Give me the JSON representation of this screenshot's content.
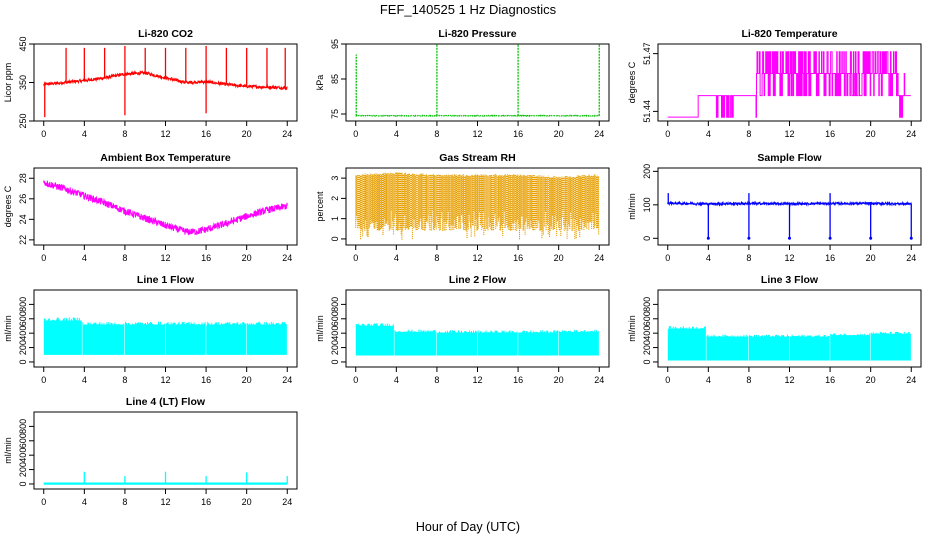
{
  "figure": {
    "title": "FEF_140525  1 Hz Diagnostics",
    "xlabel": "Hour of Day (UTC)"
  },
  "chart_data": [
    {
      "type": "line",
      "title": "Li-820 CO2",
      "ylabel": "Licor ppm",
      "color": "#ff0000",
      "xlim": [
        0,
        24
      ],
      "ylim": [
        250,
        450
      ],
      "xticks": [
        0,
        4,
        8,
        12,
        16,
        20,
        24
      ],
      "yticks": [
        250,
        350,
        450
      ],
      "x": [
        0,
        2,
        4,
        6,
        8,
        10,
        12,
        14,
        16,
        18,
        20,
        22,
        24
      ],
      "y": [
        345,
        350,
        355,
        362,
        372,
        375,
        362,
        350,
        352,
        345,
        340,
        338,
        336
      ],
      "spikes": [
        {
          "x": 0.1,
          "y": 260
        },
        {
          "x": 2.2,
          "y": 440
        },
        {
          "x": 4.0,
          "y": 440
        },
        {
          "x": 6.0,
          "y": 440
        },
        {
          "x": 8.0,
          "y": 265
        },
        {
          "x": 8.0,
          "y": 445
        },
        {
          "x": 10.0,
          "y": 440
        },
        {
          "x": 12.0,
          "y": 440
        },
        {
          "x": 14.0,
          "y": 440
        },
        {
          "x": 16.0,
          "y": 270
        },
        {
          "x": 16.0,
          "y": 445
        },
        {
          "x": 18.0,
          "y": 440
        },
        {
          "x": 20.0,
          "y": 440
        },
        {
          "x": 22.0,
          "y": 440
        },
        {
          "x": 23.8,
          "y": 440
        }
      ]
    },
    {
      "type": "line",
      "title": "Li-820 Pressure",
      "ylabel": "kPa",
      "color": "#00c000",
      "xlim": [
        0,
        24
      ],
      "ylim": [
        73,
        95
      ],
      "xticks": [
        0,
        4,
        8,
        12,
        16,
        20,
        24
      ],
      "yticks": [
        75,
        85,
        95
      ],
      "x": [
        0,
        24
      ],
      "y": [
        74.5,
        74.5
      ],
      "spikes": [
        {
          "x": 0.05,
          "y": 92
        },
        {
          "x": 8.0,
          "y": 95
        },
        {
          "x": 16.0,
          "y": 95
        },
        {
          "x": 24.0,
          "y": 95
        }
      ]
    },
    {
      "type": "line",
      "title": "Li-820 Temperature",
      "ylabel": "degrees C",
      "color": "#ff00ff",
      "xlim": [
        0,
        24
      ],
      "ylim": [
        51.435,
        51.475
      ],
      "xticks": [
        0,
        4,
        8,
        12,
        16,
        20,
        24
      ],
      "yticks": [
        51.44,
        51.47
      ],
      "levels": [
        51.437,
        51.4482,
        51.4597,
        51.471
      ],
      "x": [
        0,
        3.0,
        4.5,
        6.5,
        8.5,
        9.0,
        10.0,
        12.0,
        14.0,
        16.0,
        18.0,
        20.0,
        22.0,
        23.5,
        24.0
      ],
      "y": [
        51.437,
        51.437,
        51.4482,
        51.4482,
        51.4482,
        51.4597,
        51.4597,
        51.4597,
        51.4597,
        51.4597,
        51.4597,
        51.4597,
        51.4597,
        51.4482,
        51.4482
      ]
    },
    {
      "type": "line",
      "title": "Ambient Box Temperature",
      "ylabel": "degrees C",
      "color": "#ff00ff",
      "xlim": [
        0,
        24
      ],
      "ylim": [
        21.5,
        29
      ],
      "xticks": [
        0,
        4,
        8,
        12,
        16,
        20,
        24
      ],
      "yticks": [
        22,
        24,
        26,
        28
      ],
      "x": [
        0,
        2,
        4,
        6,
        8,
        10,
        12,
        14,
        15,
        16,
        18,
        20,
        22,
        24
      ],
      "y": [
        27.6,
        27.0,
        26.3,
        25.6,
        24.8,
        24.1,
        23.4,
        22.8,
        22.8,
        23.0,
        23.6,
        24.3,
        24.9,
        25.3
      ]
    },
    {
      "type": "line",
      "title": "Gas Stream RH",
      "ylabel": "percent",
      "color": "#e69f00",
      "xlim": [
        0,
        24
      ],
      "ylim": [
        -0.3,
        3.5
      ],
      "xticks": [
        0,
        4,
        8,
        12,
        16,
        20,
        24
      ],
      "yticks": [
        0,
        1,
        2,
        3
      ],
      "x": [
        0,
        4,
        8,
        12,
        16,
        20,
        24
      ],
      "y": [
        3.2,
        3.3,
        3.2,
        3.2,
        3.2,
        3.1,
        3.2
      ]
    },
    {
      "type": "line",
      "title": "Sample Flow",
      "ylabel": "ml/min",
      "color": "#0000ff",
      "xlim": [
        0,
        24
      ],
      "ylim": [
        -20,
        210
      ],
      "xticks": [
        0,
        4,
        8,
        12,
        16,
        20,
        24
      ],
      "yticks": [
        0,
        100,
        200
      ],
      "x": [
        0,
        4,
        8,
        12,
        16,
        20,
        24
      ],
      "y": [
        105,
        103,
        104,
        103,
        104,
        104,
        103
      ],
      "spikes": [
        {
          "x": 0.05,
          "y": 135
        },
        {
          "x": 4.0,
          "y": 0
        },
        {
          "x": 8.0,
          "y": 0
        },
        {
          "x": 8.0,
          "y": 135
        },
        {
          "x": 12.0,
          "y": 0
        },
        {
          "x": 16.0,
          "y": 0
        },
        {
          "x": 16.0,
          "y": 135
        },
        {
          "x": 20.0,
          "y": 0
        },
        {
          "x": 24.0,
          "y": 0
        }
      ]
    },
    {
      "type": "area",
      "title": "Line 1 Flow",
      "ylabel": "ml/min",
      "color": "#00ffff",
      "xlim": [
        0,
        24
      ],
      "ylim": [
        -70,
        1000
      ],
      "xticks": [
        0,
        4,
        8,
        12,
        16,
        20,
        24
      ],
      "yticks": [
        0,
        200,
        400,
        600,
        800
      ],
      "segments": [
        {
          "x0": 0,
          "x1": 3.8,
          "low": 100,
          "high": 620
        },
        {
          "x0": 3.8,
          "x1": 8.0,
          "low": 100,
          "high": 560
        },
        {
          "x0": 8.0,
          "x1": 12.0,
          "low": 100,
          "high": 560
        },
        {
          "x0": 12.0,
          "x1": 16.0,
          "low": 100,
          "high": 560
        },
        {
          "x0": 16.0,
          "x1": 20.0,
          "low": 100,
          "high": 560
        },
        {
          "x0": 20.0,
          "x1": 24.0,
          "low": 100,
          "high": 560
        }
      ]
    },
    {
      "type": "area",
      "title": "Line 2 Flow",
      "ylabel": "ml/min",
      "color": "#00ffff",
      "xlim": [
        0,
        24
      ],
      "ylim": [
        -70,
        1000
      ],
      "xticks": [
        0,
        4,
        8,
        12,
        16,
        20,
        24
      ],
      "yticks": [
        0,
        200,
        400,
        600,
        800
      ],
      "segments": [
        {
          "x0": 0,
          "x1": 3.8,
          "low": 90,
          "high": 540
        },
        {
          "x0": 3.8,
          "x1": 8.0,
          "low": 90,
          "high": 450
        },
        {
          "x0": 8.0,
          "x1": 12.0,
          "low": 90,
          "high": 440
        },
        {
          "x0": 12.0,
          "x1": 16.0,
          "low": 90,
          "high": 440
        },
        {
          "x0": 16.0,
          "x1": 20.0,
          "low": 90,
          "high": 440
        },
        {
          "x0": 20.0,
          "x1": 24.0,
          "low": 90,
          "high": 450
        }
      ]
    },
    {
      "type": "area",
      "title": "Line 3 Flow",
      "ylabel": "ml/min",
      "color": "#00ffff",
      "xlim": [
        0,
        24
      ],
      "ylim": [
        -70,
        1000
      ],
      "xticks": [
        0,
        4,
        8,
        12,
        16,
        20,
        24
      ],
      "yticks": [
        0,
        200,
        400,
        600,
        800
      ],
      "segments": [
        {
          "x0": 0,
          "x1": 3.8,
          "low": 20,
          "high": 500
        },
        {
          "x0": 3.8,
          "x1": 8.0,
          "low": 20,
          "high": 380
        },
        {
          "x0": 8.0,
          "x1": 12.0,
          "low": 20,
          "high": 380
        },
        {
          "x0": 12.0,
          "x1": 16.0,
          "low": 20,
          "high": 380
        },
        {
          "x0": 16.0,
          "x1": 20.0,
          "low": 20,
          "high": 400
        },
        {
          "x0": 20.0,
          "x1": 24.0,
          "low": 20,
          "high": 420
        }
      ]
    },
    {
      "type": "line",
      "title": "Line 4 (LT) Flow",
      "ylabel": "ml/min",
      "color": "#00ffff",
      "xlim": [
        0,
        24
      ],
      "ylim": [
        -70,
        1000
      ],
      "xticks": [
        0,
        4,
        8,
        12,
        16,
        20,
        24
      ],
      "yticks": [
        0,
        200,
        400,
        600,
        800
      ],
      "x": [
        0,
        24
      ],
      "y": [
        5,
        5
      ],
      "spikes": [
        {
          "x": 4.0,
          "y": 170
        },
        {
          "x": 8.0,
          "y": 110
        },
        {
          "x": 12.0,
          "y": 170
        },
        {
          "x": 16.0,
          "y": 110
        },
        {
          "x": 20.0,
          "y": 160
        },
        {
          "x": 24.0,
          "y": 110
        }
      ]
    }
  ]
}
